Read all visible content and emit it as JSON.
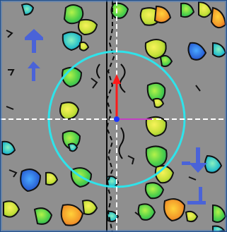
{
  "viewport": {
    "name": "volume-slice-view",
    "background": "#8f8f8f",
    "frame_color": "#1f4e8c"
  },
  "crosshair": {
    "color": "#ffffff",
    "style": "dashed"
  },
  "cursor_ring": {
    "color": "#2fe3ea"
  },
  "axis_gizmo": {
    "up_color": "#ff1a1a",
    "right_color": "#c43dc4",
    "origin_color": "#1a35ff"
  },
  "overlay_arrows": {
    "color": "#4a63d8",
    "icons": [
      "arrow-up-icon",
      "arrow-down-icon",
      "arrow-left-icon"
    ]
  },
  "palette": [
    "#2aa7d8",
    "#38c06a",
    "#8ae03a",
    "#d6e83a",
    "#f2a22a",
    "#e64a2a",
    "#1c5fd0"
  ]
}
